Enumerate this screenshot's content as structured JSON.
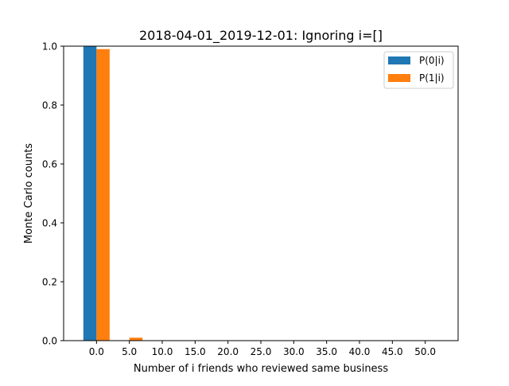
{
  "chart_data": {
    "type": "bar",
    "title": "2018-04-01_2019-12-01: Ignoring i=[]",
    "xlabel": "Number of i friends who reviewed same business",
    "ylabel": "Monte Carlo counts",
    "ylim": [
      0,
      1.0
    ],
    "x_ticks": [
      "0.0",
      "5.0",
      "10.0",
      "15.0",
      "20.0",
      "25.0",
      "30.0",
      "35.0",
      "40.0",
      "45.0",
      "50.0"
    ],
    "y_ticks": [
      "0.0",
      "0.2",
      "0.4",
      "0.6",
      "0.8",
      "1.0"
    ],
    "x": [
      0,
      1,
      2,
      3,
      4,
      5,
      6,
      7,
      8,
      9,
      10
    ],
    "series": [
      {
        "name": "P(0|i)",
        "color": "#1f77b4",
        "values": [
          1.0,
          0,
          0,
          0,
          0,
          0,
          0,
          0,
          0,
          0,
          0
        ]
      },
      {
        "name": "P(1|i)",
        "color": "#ff7f0e",
        "values": [
          0.99,
          0.01,
          0,
          0,
          0,
          0,
          0,
          0,
          0,
          0,
          0
        ]
      }
    ],
    "grid": false,
    "legend_position": "top-right"
  }
}
